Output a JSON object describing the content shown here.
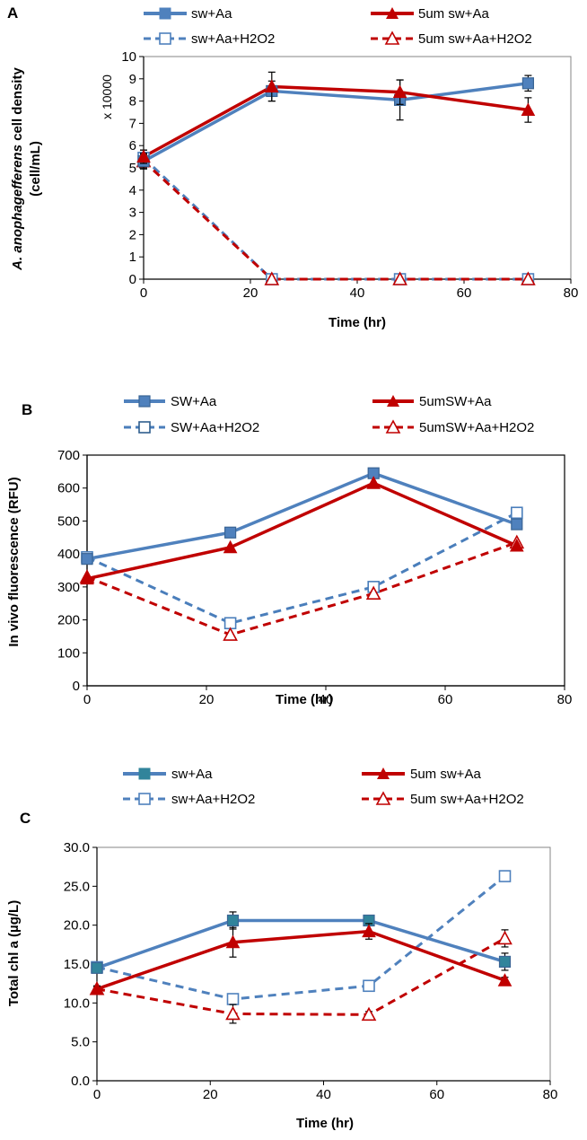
{
  "colors": {
    "blue": "#4F81BD",
    "red": "#C00000",
    "blueDark": "#4A7EBB",
    "axis": "#000000"
  },
  "chart_data": [
    {
      "type": "line",
      "panel_label": "A",
      "xlabel": "Time (hr)",
      "ylabel_italic": "A. anophagefferens",
      "ylabel_rest": " cell density",
      "ylabel_line2": "(cell/mL)",
      "multiplier": "x 10000",
      "xlim": [
        0,
        80
      ],
      "ylim": [
        0,
        10
      ],
      "xticks": [
        0,
        20,
        40,
        60,
        80
      ],
      "yticks": [
        0,
        1,
        2,
        3,
        4,
        5,
        6,
        7,
        8,
        9,
        10
      ],
      "ytick_labels": [
        "0",
        "1",
        "2",
        "3",
        "4",
        "5",
        "6",
        "7",
        "8",
        "9",
        "10"
      ],
      "series": [
        {
          "name": "sw+Aa",
          "color": "blue",
          "marker": "square",
          "filled": true,
          "dashed": false,
          "x": [
            0,
            24,
            48,
            72
          ],
          "y": [
            5.3,
            8.45,
            8.05,
            8.8
          ],
          "err": [
            0.35,
            0.45,
            0.9,
            0.35
          ]
        },
        {
          "name": "5um sw+Aa",
          "color": "red",
          "marker": "triangle",
          "filled": true,
          "dashed": false,
          "x": [
            0,
            24,
            48,
            72
          ],
          "y": [
            5.5,
            8.65,
            8.4,
            7.6
          ],
          "err": [
            0.3,
            0.65,
            0.55,
            0.55
          ]
        },
        {
          "name": "sw+Aa+H2O2",
          "color": "blue",
          "marker": "square",
          "filled": false,
          "dashed": true,
          "x": [
            0,
            24,
            48,
            72
          ],
          "y": [
            5.45,
            0.0,
            0.0,
            0.0
          ],
          "err": [
            0.35,
            0,
            0,
            0
          ]
        },
        {
          "name": "5um sw+Aa+H2O2",
          "color": "red",
          "marker": "triangle",
          "filled": false,
          "dashed": true,
          "x": [
            0,
            24,
            48,
            72
          ],
          "y": [
            5.3,
            0.0,
            0.0,
            0.0
          ],
          "err": [
            0.3,
            0,
            0,
            0
          ]
        }
      ]
    },
    {
      "type": "line",
      "panel_label": "B",
      "xlabel": "Time (hr)",
      "ylabel": "In vivo fluorescence (RFU)",
      "xlim": [
        0,
        80
      ],
      "ylim": [
        0,
        700
      ],
      "xticks": [
        0,
        20,
        40,
        60,
        80
      ],
      "yticks": [
        0,
        100,
        200,
        300,
        400,
        500,
        600,
        700
      ],
      "ytick_labels": [
        "0",
        "100",
        "200",
        "300",
        "400",
        "500",
        "600",
        "700"
      ],
      "series": [
        {
          "name": "SW+Aa",
          "color": "blue",
          "marker": "square",
          "filled": true,
          "dashed": false,
          "x": [
            0,
            24,
            48,
            72
          ],
          "y": [
            385,
            465,
            645,
            490
          ]
        },
        {
          "name": "5umSW+Aa",
          "color": "red",
          "marker": "triangle",
          "filled": true,
          "dashed": false,
          "x": [
            0,
            24,
            48,
            72
          ],
          "y": [
            325,
            420,
            615,
            425
          ]
        },
        {
          "name": "SW+Aa+H2O2",
          "color": "blueDark",
          "marker": "square",
          "filled": false,
          "dashed": true,
          "x": [
            0,
            24,
            48,
            72
          ],
          "y": [
            390,
            190,
            300,
            525
          ]
        },
        {
          "name": "5umSW+Aa+H2O2",
          "color": "red",
          "marker": "triangle",
          "filled": false,
          "dashed": true,
          "x": [
            0,
            24,
            48,
            72
          ],
          "y": [
            330,
            155,
            280,
            435
          ]
        }
      ]
    },
    {
      "type": "line",
      "panel_label": "C",
      "xlabel": "Time (hr)",
      "ylabel": "Total chl a (µg/L)",
      "xlim": [
        0,
        80
      ],
      "ylim": [
        0,
        30
      ],
      "xticks": [
        0,
        20,
        40,
        60,
        80
      ],
      "yticks": [
        0,
        5,
        10,
        15,
        20,
        25,
        30
      ],
      "ytick_labels": [
        "0.0",
        "5.0",
        "10.0",
        "15.0",
        "20.0",
        "25.0",
        "30.0"
      ],
      "series": [
        {
          "name": "sw+Aa",
          "color": "blue",
          "marker": "square",
          "filled": true,
          "dashed": false,
          "x": [
            0,
            24,
            48,
            72
          ],
          "y": [
            14.5,
            20.6,
            20.6,
            15.3
          ],
          "err": [
            0.4,
            1.1,
            0.5,
            1.1
          ]
        },
        {
          "name": "5um sw+Aa",
          "color": "red",
          "marker": "triangle",
          "filled": true,
          "dashed": false,
          "x": [
            0,
            24,
            48,
            72
          ],
          "y": [
            11.8,
            17.8,
            19.2,
            12.9
          ],
          "err": [
            0.4,
            1.9,
            1.0,
            0.4
          ]
        },
        {
          "name": "sw+Aa+H2O2",
          "color": "blue",
          "marker": "square",
          "filled": false,
          "dashed": true,
          "x": [
            0,
            24,
            48,
            72
          ],
          "y": [
            14.6,
            10.5,
            12.2,
            26.3
          ],
          "err": [
            0.4,
            0.5,
            0.4,
            0.3
          ]
        },
        {
          "name": "5um sw+Aa+H2O2",
          "color": "red",
          "marker": "triangle",
          "filled": false,
          "dashed": true,
          "x": [
            0,
            24,
            48,
            72
          ],
          "y": [
            11.8,
            8.6,
            8.5,
            18.3
          ],
          "err": [
            0.3,
            1.2,
            0.4,
            1.1
          ]
        }
      ]
    }
  ]
}
